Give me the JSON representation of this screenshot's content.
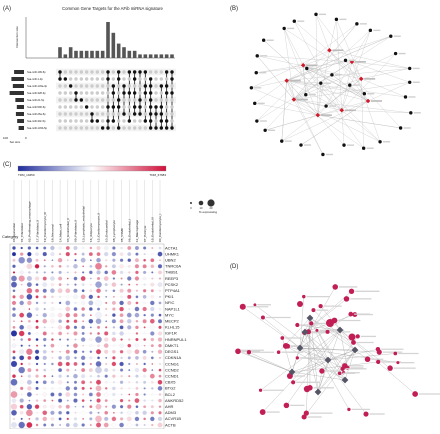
{
  "panels": {
    "a": {
      "label": "(A)",
      "title": "Common Gene Targets for the AFib miRNA signature",
      "ylabel": "Intersection size",
      "set_size_label": "Set size",
      "set_size_ticks": [
        "100",
        "0"
      ],
      "bar_values": [
        3,
        1,
        3,
        2,
        2,
        2,
        2,
        2,
        2,
        10,
        7,
        4,
        3,
        2,
        2,
        1,
        1,
        1,
        1,
        1,
        1,
        1
      ],
      "bar_color": "#555555",
      "sets": [
        {
          "name": "hsa-miR-199-5p",
          "size": 0.55
        },
        {
          "name": "hsa-miR-1-3p",
          "size": 0.7
        },
        {
          "name": "hsa-miR-133a-3p",
          "size": 0.62
        },
        {
          "name": "hsa-miR-328-3p",
          "size": 0.8
        },
        {
          "name": "hsa-miR-21-5p",
          "size": 0.48
        },
        {
          "name": "hsa-miR-590-5p",
          "size": 0.4
        },
        {
          "name": "hsa-miR-26a-5p",
          "size": 0.45
        },
        {
          "name": "hsa-miR-30c-5p",
          "size": 0.38
        },
        {
          "name": "hsa-miR-133b-5p",
          "size": 0.3
        }
      ]
    },
    "b": {
      "label": "(B)",
      "node_color_gene": "#111111",
      "node_color_mirna": "#d11a2a",
      "edge_color": "#bbbbbb"
    },
    "c": {
      "label": "(C)",
      "colorbar_low": "TDM_19450",
      "colorbar_high": "TDM_67683",
      "size_legend_label": "% expressing",
      "size_legend_values": [
        "0",
        "10",
        "20"
      ],
      "category_label": "Category",
      "columns": [
        "03_Epicardial",
        "01_Fibroblast",
        "02_Proliferating_macrophage",
        "17_Fibroblast_II",
        "19_Cardiomyocyte_III",
        "18_Neuronal",
        "14_Mast_cell",
        "04_Endothelial_II",
        "09_Fibroblast_II",
        "13_Lymphatic_endothelial",
        "16_Adipocyte",
        "12_Cardiomyocyte_II",
        "10_Endocardial",
        "08_Lymphocyte",
        "05_VSMC",
        "06_Endothelial_I",
        "11_Macrophage",
        "07_Pericyte",
        "15_Endothelial_III",
        "00_Cardiomyocyte_I"
      ],
      "genes": [
        "ACTA1",
        "UHMK1",
        "UBN2",
        "TNRC6A",
        "THBS1",
        "REEP3",
        "PCSK2",
        "PTP4A1",
        "PKI1",
        "NFIC",
        "NAP1L1",
        "MYC",
        "MECP2",
        "KLHL15",
        "IGF1R",
        "HNRNPUL1",
        "DMKT1",
        "DEGS1",
        "CDKN1A",
        "CCNG1",
        "CCND2",
        "CCND1",
        "CBX5",
        "BTG2",
        "BCL2",
        "ANKRD52",
        "AHR",
        "ADM3",
        "ACVR1B",
        "ACTB"
      ],
      "gene_label_color": "#222222"
    },
    "d": {
      "label": "(D)",
      "node_color": "#c21e56",
      "hub_color": "#555566",
      "edge_color": "#999999"
    }
  }
}
